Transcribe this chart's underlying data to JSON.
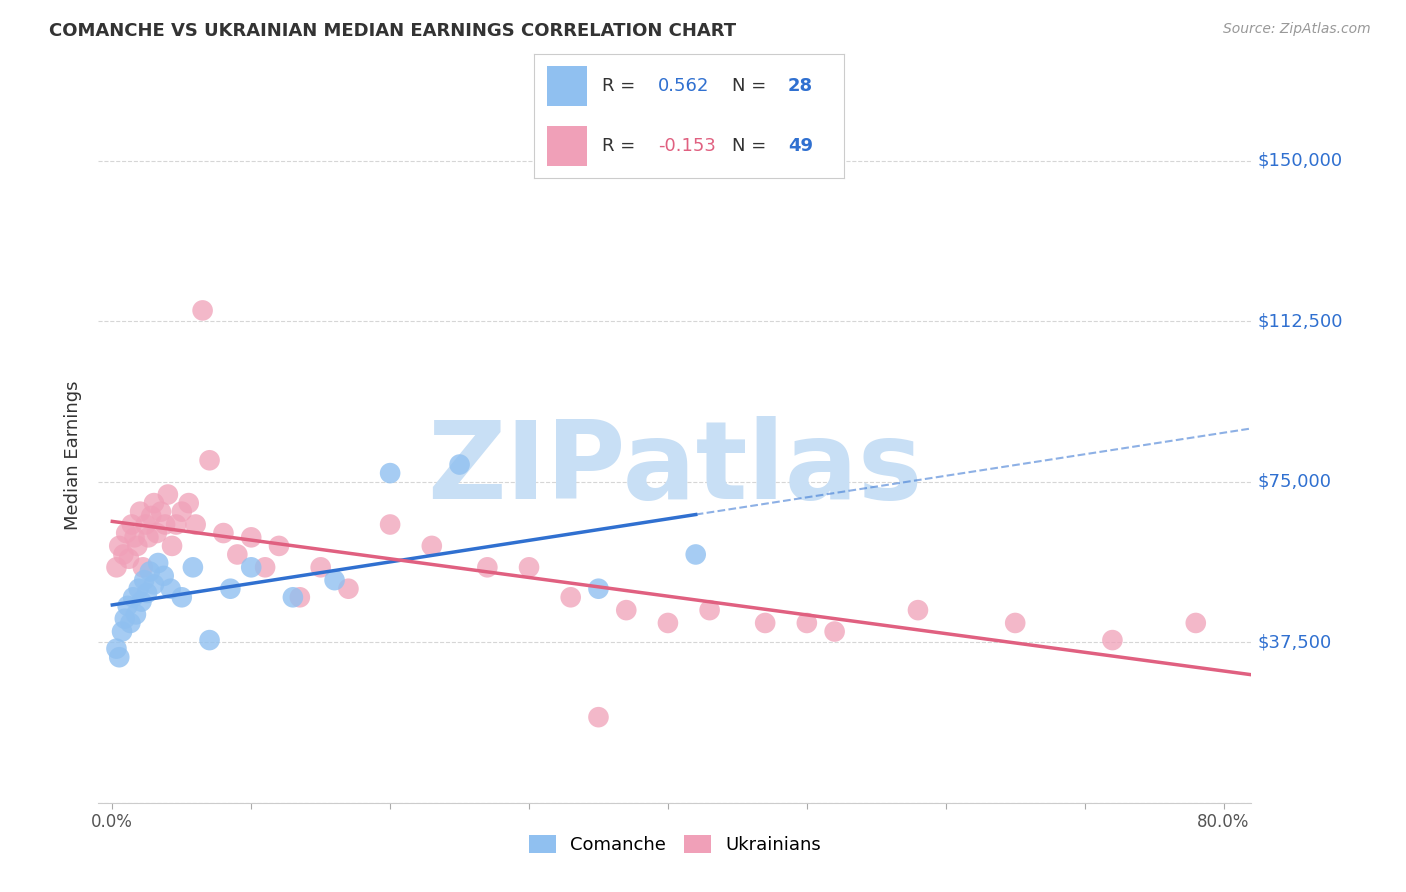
{
  "title": "COMANCHE VS UKRAINIAN MEDIAN EARNINGS CORRELATION CHART",
  "source": "Source: ZipAtlas.com",
  "ylabel": "Median Earnings",
  "xlim": [
    -1.0,
    82.0
  ],
  "ylim": [
    0,
    162500
  ],
  "yticks": [
    0,
    37500,
    75000,
    112500,
    150000
  ],
  "ytick_labels": [
    "",
    "$37,500",
    "$75,000",
    "$112,500",
    "$150,000"
  ],
  "xticks": [
    0.0,
    10.0,
    20.0,
    30.0,
    40.0,
    50.0,
    60.0,
    70.0,
    80.0
  ],
  "xtick_labels": [
    "0.0%",
    "",
    "",
    "",
    "",
    "",
    "",
    "",
    "80.0%"
  ],
  "background_color": "#ffffff",
  "grid_color": "#cccccc",
  "comanche_color": "#90c0f0",
  "ukrainian_color": "#f0a0b8",
  "comanche_line_color": "#3070d0",
  "ukrainian_line_color": "#e06080",
  "legend_R_color": "#333333",
  "legend_N_color": "#3070d0",
  "watermark": "ZIPatlas",
  "watermark_color": "#c8dff5",
  "comanche_x": [
    0.3,
    0.5,
    0.7,
    0.9,
    1.1,
    1.3,
    1.5,
    1.7,
    1.9,
    2.1,
    2.3,
    2.5,
    2.7,
    3.0,
    3.3,
    3.7,
    4.2,
    5.0,
    5.8,
    7.0,
    8.5,
    10.0,
    13.0,
    16.0,
    20.0,
    25.0,
    35.0,
    42.0
  ],
  "comanche_y": [
    36000,
    34000,
    40000,
    43000,
    46000,
    42000,
    48000,
    44000,
    50000,
    47000,
    52000,
    49000,
    54000,
    51000,
    56000,
    53000,
    50000,
    48000,
    55000,
    38000,
    50000,
    55000,
    48000,
    52000,
    77000,
    79000,
    50000,
    58000
  ],
  "ukrainian_x": [
    0.3,
    0.5,
    0.8,
    1.0,
    1.2,
    1.4,
    1.6,
    1.8,
    2.0,
    2.2,
    2.4,
    2.6,
    2.8,
    3.0,
    3.2,
    3.5,
    3.8,
    4.0,
    4.3,
    4.6,
    5.0,
    5.5,
    6.0,
    6.5,
    7.0,
    8.0,
    9.0,
    10.0,
    11.0,
    12.0,
    13.5,
    15.0,
    17.0,
    20.0,
    23.0,
    27.0,
    30.0,
    33.0,
    37.0,
    40.0,
    43.0,
    47.0,
    52.0,
    58.0,
    65.0,
    72.0,
    78.0,
    35.0,
    50.0
  ],
  "ukrainian_y": [
    55000,
    60000,
    58000,
    63000,
    57000,
    65000,
    62000,
    60000,
    68000,
    55000,
    65000,
    62000,
    67000,
    70000,
    63000,
    68000,
    65000,
    72000,
    60000,
    65000,
    68000,
    70000,
    65000,
    115000,
    80000,
    63000,
    58000,
    62000,
    55000,
    60000,
    48000,
    55000,
    50000,
    65000,
    60000,
    55000,
    55000,
    48000,
    45000,
    42000,
    45000,
    42000,
    40000,
    45000,
    42000,
    38000,
    42000,
    20000,
    42000
  ]
}
